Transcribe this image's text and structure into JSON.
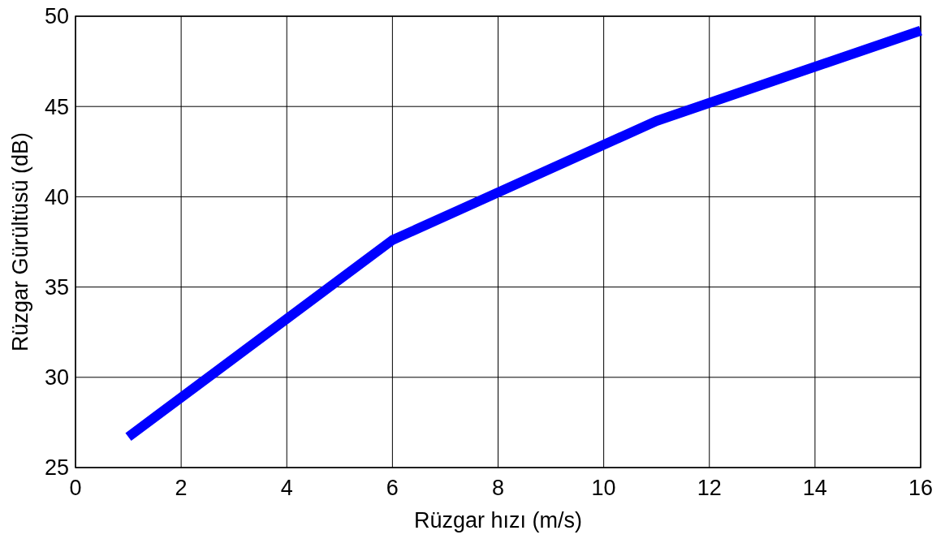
{
  "chart_data": {
    "type": "line",
    "xlabel": "Rüzgar hızı (m/s)",
    "ylabel": "Rüzgar Gürültüsü (dB)",
    "x": [
      1,
      6,
      11,
      16
    ],
    "series": [
      {
        "color": "#0000ff",
        "values": [
          26.7,
          37.6,
          44.2,
          49.2
        ]
      }
    ],
    "xlim": [
      0,
      16
    ],
    "xticks": [
      0,
      2,
      4,
      6,
      8,
      10,
      12,
      14,
      16
    ],
    "ylim": [
      25,
      50
    ],
    "yticks": [
      25,
      30,
      35,
      40,
      45,
      50
    ],
    "grid": true,
    "line_style": "solid",
    "marker": "none"
  }
}
